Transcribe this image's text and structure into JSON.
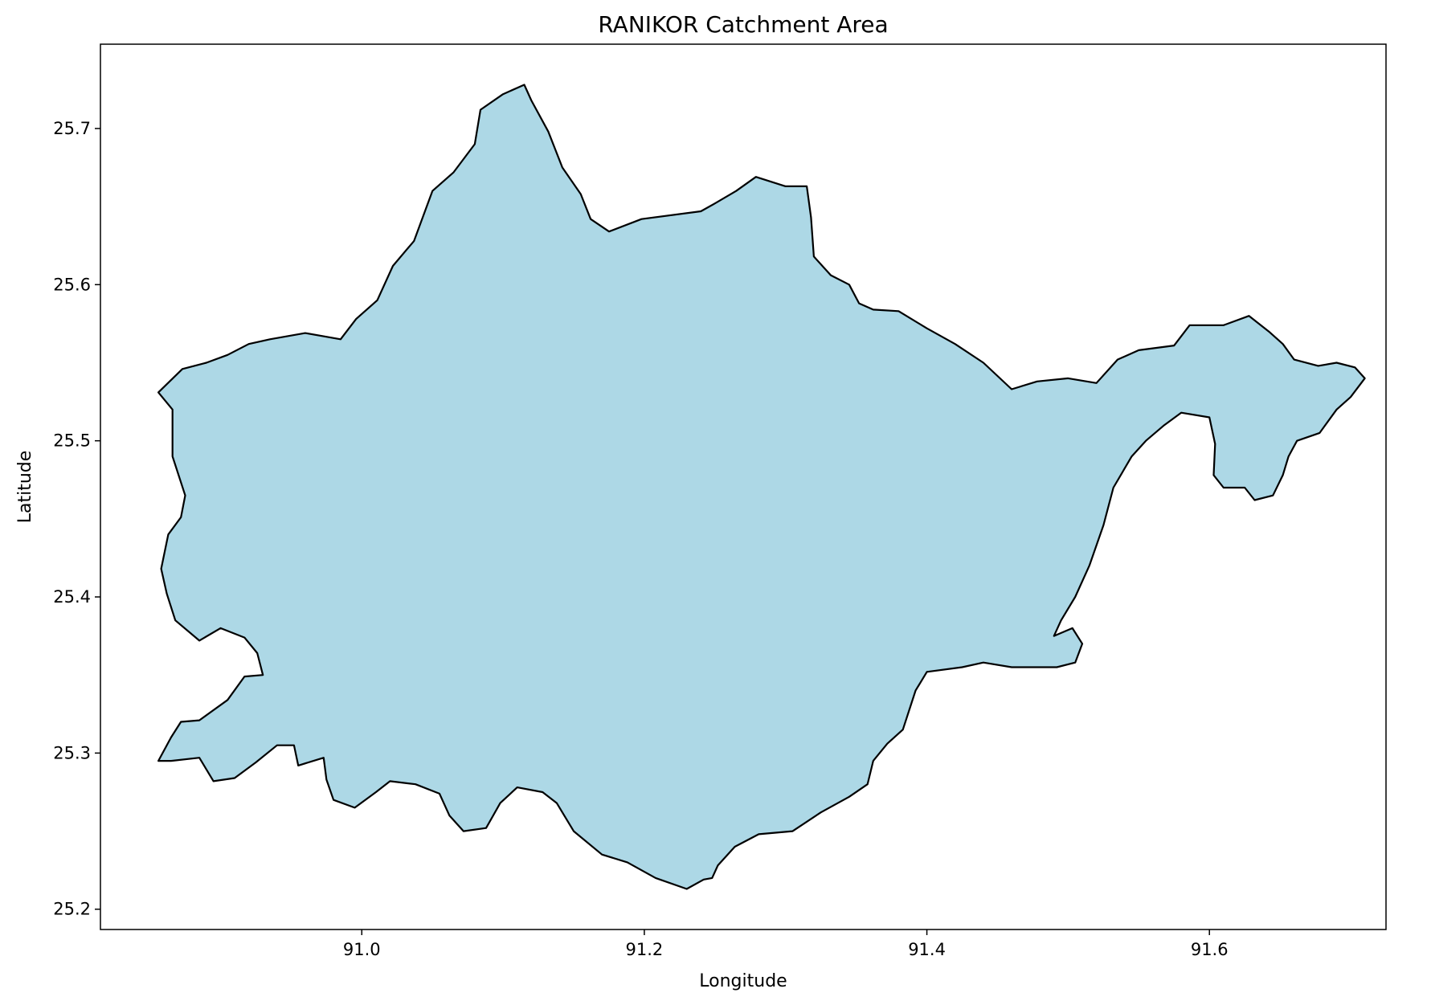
{
  "chart_data": {
    "type": "map",
    "title": "RANIKOR Catchment Area",
    "xlabel": "Longitude",
    "ylabel": "Latitude",
    "xlim": [
      90.815,
      91.725
    ],
    "ylim": [
      25.187,
      25.754
    ],
    "xticks": [
      91.0,
      91.2,
      91.4,
      91.6
    ],
    "xtick_labels": [
      "91.0",
      "91.2",
      "91.4",
      "91.6"
    ],
    "yticks": [
      25.2,
      25.3,
      25.4,
      25.5,
      25.6,
      25.7
    ],
    "ytick_labels": [
      "25.2",
      "25.3",
      "25.4",
      "25.5",
      "25.6",
      "25.7"
    ],
    "grid": false,
    "legend": false,
    "fill_color": "#add8e6",
    "edge_color": "#000000",
    "region": {
      "name": "RANIKOR",
      "boundary": [
        [
          90.856,
          25.295
        ],
        [
          90.865,
          25.31
        ],
        [
          90.872,
          25.32
        ],
        [
          90.885,
          25.321
        ],
        [
          90.905,
          25.334
        ],
        [
          90.917,
          25.349
        ],
        [
          90.93,
          25.35
        ],
        [
          90.926,
          25.364
        ],
        [
          90.917,
          25.374
        ],
        [
          90.9,
          25.38
        ],
        [
          90.885,
          25.372
        ],
        [
          90.868,
          25.385
        ],
        [
          90.862,
          25.402
        ],
        [
          90.858,
          25.418
        ],
        [
          90.863,
          25.44
        ],
        [
          90.872,
          25.451
        ],
        [
          90.875,
          25.465
        ],
        [
          90.866,
          25.49
        ],
        [
          90.866,
          25.52
        ],
        [
          90.856,
          25.531
        ],
        [
          90.873,
          25.546
        ],
        [
          90.89,
          25.55
        ],
        [
          90.905,
          25.555
        ],
        [
          90.92,
          25.562
        ],
        [
          90.935,
          25.565
        ],
        [
          90.96,
          25.569
        ],
        [
          90.985,
          25.565
        ],
        [
          90.996,
          25.578
        ],
        [
          91.011,
          25.59
        ],
        [
          91.022,
          25.612
        ],
        [
          91.037,
          25.628
        ],
        [
          91.05,
          25.66
        ],
        [
          91.065,
          25.672
        ],
        [
          91.08,
          25.69
        ],
        [
          91.084,
          25.712
        ],
        [
          91.1,
          25.722
        ],
        [
          91.115,
          25.728
        ],
        [
          91.12,
          25.718
        ],
        [
          91.132,
          25.698
        ],
        [
          91.142,
          25.675
        ],
        [
          91.155,
          25.658
        ],
        [
          91.162,
          25.642
        ],
        [
          91.175,
          25.634
        ],
        [
          91.198,
          25.642
        ],
        [
          91.24,
          25.647
        ],
        [
          91.25,
          25.652
        ],
        [
          91.265,
          25.66
        ],
        [
          91.279,
          25.669
        ],
        [
          91.3,
          25.663
        ],
        [
          91.315,
          25.663
        ],
        [
          91.318,
          25.643
        ],
        [
          91.32,
          25.618
        ],
        [
          91.332,
          25.606
        ],
        [
          91.345,
          25.6
        ],
        [
          91.352,
          25.588
        ],
        [
          91.362,
          25.584
        ],
        [
          91.38,
          25.583
        ],
        [
          91.4,
          25.572
        ],
        [
          91.42,
          25.562
        ],
        [
          91.44,
          25.55
        ],
        [
          91.46,
          25.533
        ],
        [
          91.478,
          25.538
        ],
        [
          91.5,
          25.54
        ],
        [
          91.52,
          25.537
        ],
        [
          91.535,
          25.552
        ],
        [
          91.55,
          25.558
        ],
        [
          91.575,
          25.561
        ],
        [
          91.586,
          25.574
        ],
        [
          91.61,
          25.574
        ],
        [
          91.628,
          25.58
        ],
        [
          91.642,
          25.57
        ],
        [
          91.652,
          25.562
        ],
        [
          91.66,
          25.552
        ],
        [
          91.677,
          25.548
        ],
        [
          91.69,
          25.55
        ],
        [
          91.703,
          25.547
        ],
        [
          91.71,
          25.54
        ],
        [
          91.7,
          25.528
        ],
        [
          91.69,
          25.52
        ],
        [
          91.678,
          25.505
        ],
        [
          91.662,
          25.5
        ],
        [
          91.656,
          25.49
        ],
        [
          91.652,
          25.478
        ],
        [
          91.645,
          25.465
        ],
        [
          91.632,
          25.462
        ],
        [
          91.625,
          25.47
        ],
        [
          91.61,
          25.47
        ],
        [
          91.603,
          25.478
        ],
        [
          91.604,
          25.498
        ],
        [
          91.6,
          25.515
        ],
        [
          91.58,
          25.518
        ],
        [
          91.568,
          25.51
        ],
        [
          91.555,
          25.5
        ],
        [
          91.545,
          25.49
        ],
        [
          91.532,
          25.47
        ],
        [
          91.525,
          25.446
        ],
        [
          91.515,
          25.42
        ],
        [
          91.505,
          25.4
        ],
        [
          91.495,
          25.385
        ],
        [
          91.49,
          25.375
        ],
        [
          91.503,
          25.38
        ],
        [
          91.51,
          25.37
        ],
        [
          91.505,
          25.358
        ],
        [
          91.492,
          25.355
        ],
        [
          91.478,
          25.355
        ],
        [
          91.46,
          25.355
        ],
        [
          91.44,
          25.358
        ],
        [
          91.425,
          25.355
        ],
        [
          91.4,
          25.352
        ],
        [
          91.392,
          25.34
        ],
        [
          91.383,
          25.315
        ],
        [
          91.372,
          25.306
        ],
        [
          91.362,
          25.295
        ],
        [
          91.358,
          25.28
        ],
        [
          91.345,
          25.272
        ],
        [
          91.325,
          25.262
        ],
        [
          91.305,
          25.25
        ],
        [
          91.281,
          25.248
        ],
        [
          91.264,
          25.24
        ],
        [
          91.252,
          25.228
        ],
        [
          91.248,
          25.22
        ],
        [
          91.242,
          25.219
        ],
        [
          91.23,
          25.213
        ],
        [
          91.208,
          25.22
        ],
        [
          91.188,
          25.23
        ],
        [
          91.17,
          25.235
        ],
        [
          91.15,
          25.25
        ],
        [
          91.138,
          25.268
        ],
        [
          91.128,
          25.275
        ],
        [
          91.11,
          25.278
        ],
        [
          91.098,
          25.268
        ],
        [
          91.088,
          25.252
        ],
        [
          91.072,
          25.25
        ],
        [
          91.062,
          25.26
        ],
        [
          91.055,
          25.274
        ],
        [
          91.038,
          25.28
        ],
        [
          91.02,
          25.282
        ],
        [
          91.01,
          25.275
        ],
        [
          90.995,
          25.265
        ],
        [
          90.98,
          25.27
        ],
        [
          90.975,
          25.283
        ],
        [
          90.973,
          25.297
        ],
        [
          90.955,
          25.292
        ],
        [
          90.952,
          25.305
        ],
        [
          90.94,
          25.305
        ],
        [
          90.925,
          25.294
        ],
        [
          90.91,
          25.284
        ],
        [
          90.895,
          25.282
        ],
        [
          90.885,
          25.297
        ],
        [
          90.865,
          25.295
        ],
        [
          90.856,
          25.295
        ]
      ]
    }
  }
}
